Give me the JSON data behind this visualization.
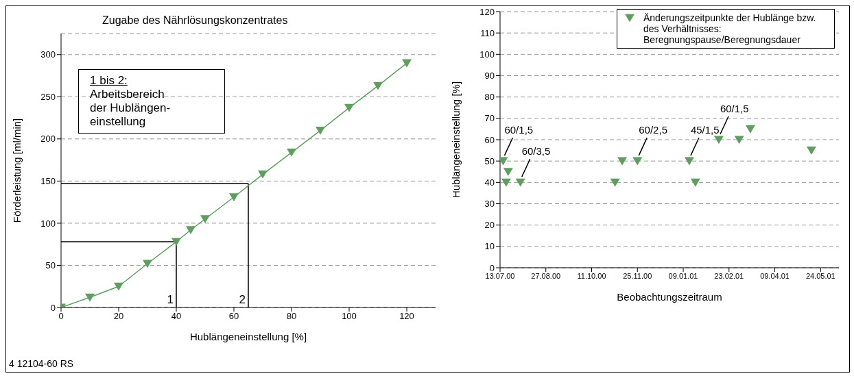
{
  "chart_data": [
    {
      "type": "line",
      "title": "Zugabe des Nährlösungskonzentrates",
      "xlabel": "Hublängeneinstellung [%]",
      "ylabel": "Förderleistung [ml/min]",
      "x": [
        0,
        10,
        20,
        30,
        40,
        45,
        50,
        60,
        70,
        80,
        90,
        100,
        110,
        120
      ],
      "series": [
        {
          "color": "#5e9e5e",
          "values": [
            0,
            12,
            25,
            52,
            78,
            92,
            105,
            131,
            158,
            184,
            210,
            237,
            263,
            290
          ]
        }
      ],
      "xlim": [
        0,
        130
      ],
      "xticks": [
        0,
        20,
        40,
        60,
        80,
        100,
        120
      ],
      "ylim": [
        0,
        325
      ],
      "yticks": [
        0,
        50,
        100,
        150,
        200,
        250,
        300
      ],
      "grid": "y",
      "legend": false,
      "marker": "triangle",
      "line_style": "solid",
      "ref_lines": [
        {
          "axis": "x",
          "value": 40,
          "color": "#000000"
        },
        {
          "axis": "x",
          "value": 65,
          "color": "#000000"
        },
        {
          "axis": "y",
          "value": 78,
          "color": "#000000"
        },
        {
          "axis": "y",
          "value": 147,
          "color": "#000000"
        }
      ],
      "annotations": [
        "1 bis 2:\nArbeitsbereich\nder Hublängen-\neinstellung",
        "4 12104-60 RS",
        {
          "text": "1",
          "x": 40,
          "y": 0
        },
        {
          "text": "2",
          "x": 65,
          "y": 0
        }
      ]
    },
    {
      "type": "scatter",
      "xlabel": "Beobachtungszeitraum",
      "ylabel": "Hublängeneinstellung [%]",
      "x": [
        "2000-07-16",
        "2000-07-19",
        "2000-07-21",
        "2000-08-02",
        "2000-11-03",
        "2000-11-10",
        "2000-11-25",
        "2001-01-15",
        "2001-01-21",
        "2001-02-13",
        "2001-03-05",
        "2001-03-16",
        "2001-05-15"
      ],
      "series": [
        {
          "name": "Änderungszeitpunkte der Hublänge bzw. des Verhältnisses: Beregnungspause/Beregnungsdauer",
          "color": "#5e9e5e",
          "values": [
            50,
            40,
            45,
            40,
            40,
            50,
            50,
            50,
            40,
            60,
            60,
            65,
            55
          ]
        }
      ],
      "xlim": [
        "2000-07-13",
        "2001-06-11"
      ],
      "xticks": [
        {
          "value": "2000-07-13",
          "label": "13.07.00"
        },
        {
          "value": "2000-08-27",
          "label": "27.08.00"
        },
        {
          "value": "2000-10-11",
          "label": "11.10.00"
        },
        {
          "value": "2000-11-25",
          "label": "25.11.00"
        },
        {
          "value": "2001-01-09",
          "label": "09.01.01"
        },
        {
          "value": "2001-02-23",
          "label": "23.02.01"
        },
        {
          "value": "2001-04-09",
          "label": "09.04.01"
        },
        {
          "value": "2001-05-24",
          "label": "24.05.01"
        }
      ],
      "ylim": [
        0,
        120
      ],
      "yticks": [
        0,
        10,
        20,
        30,
        40,
        50,
        60,
        70,
        80,
        90,
        100,
        110,
        120
      ],
      "grid": "y",
      "legend": "top right",
      "marker": "triangle",
      "annotations": [
        {
          "text": "60/1,5",
          "x": "2000-07-16",
          "y": 50
        },
        {
          "text": "60/3,5",
          "x": "2000-08-02",
          "y": 40
        },
        {
          "text": "60/2,5",
          "x": "2000-11-25",
          "y": 50
        },
        {
          "text": "45/1,5",
          "x": "2001-01-15",
          "y": 50
        },
        {
          "text": "60/1,5",
          "x": "2001-02-13",
          "y": 60
        }
      ]
    }
  ]
}
